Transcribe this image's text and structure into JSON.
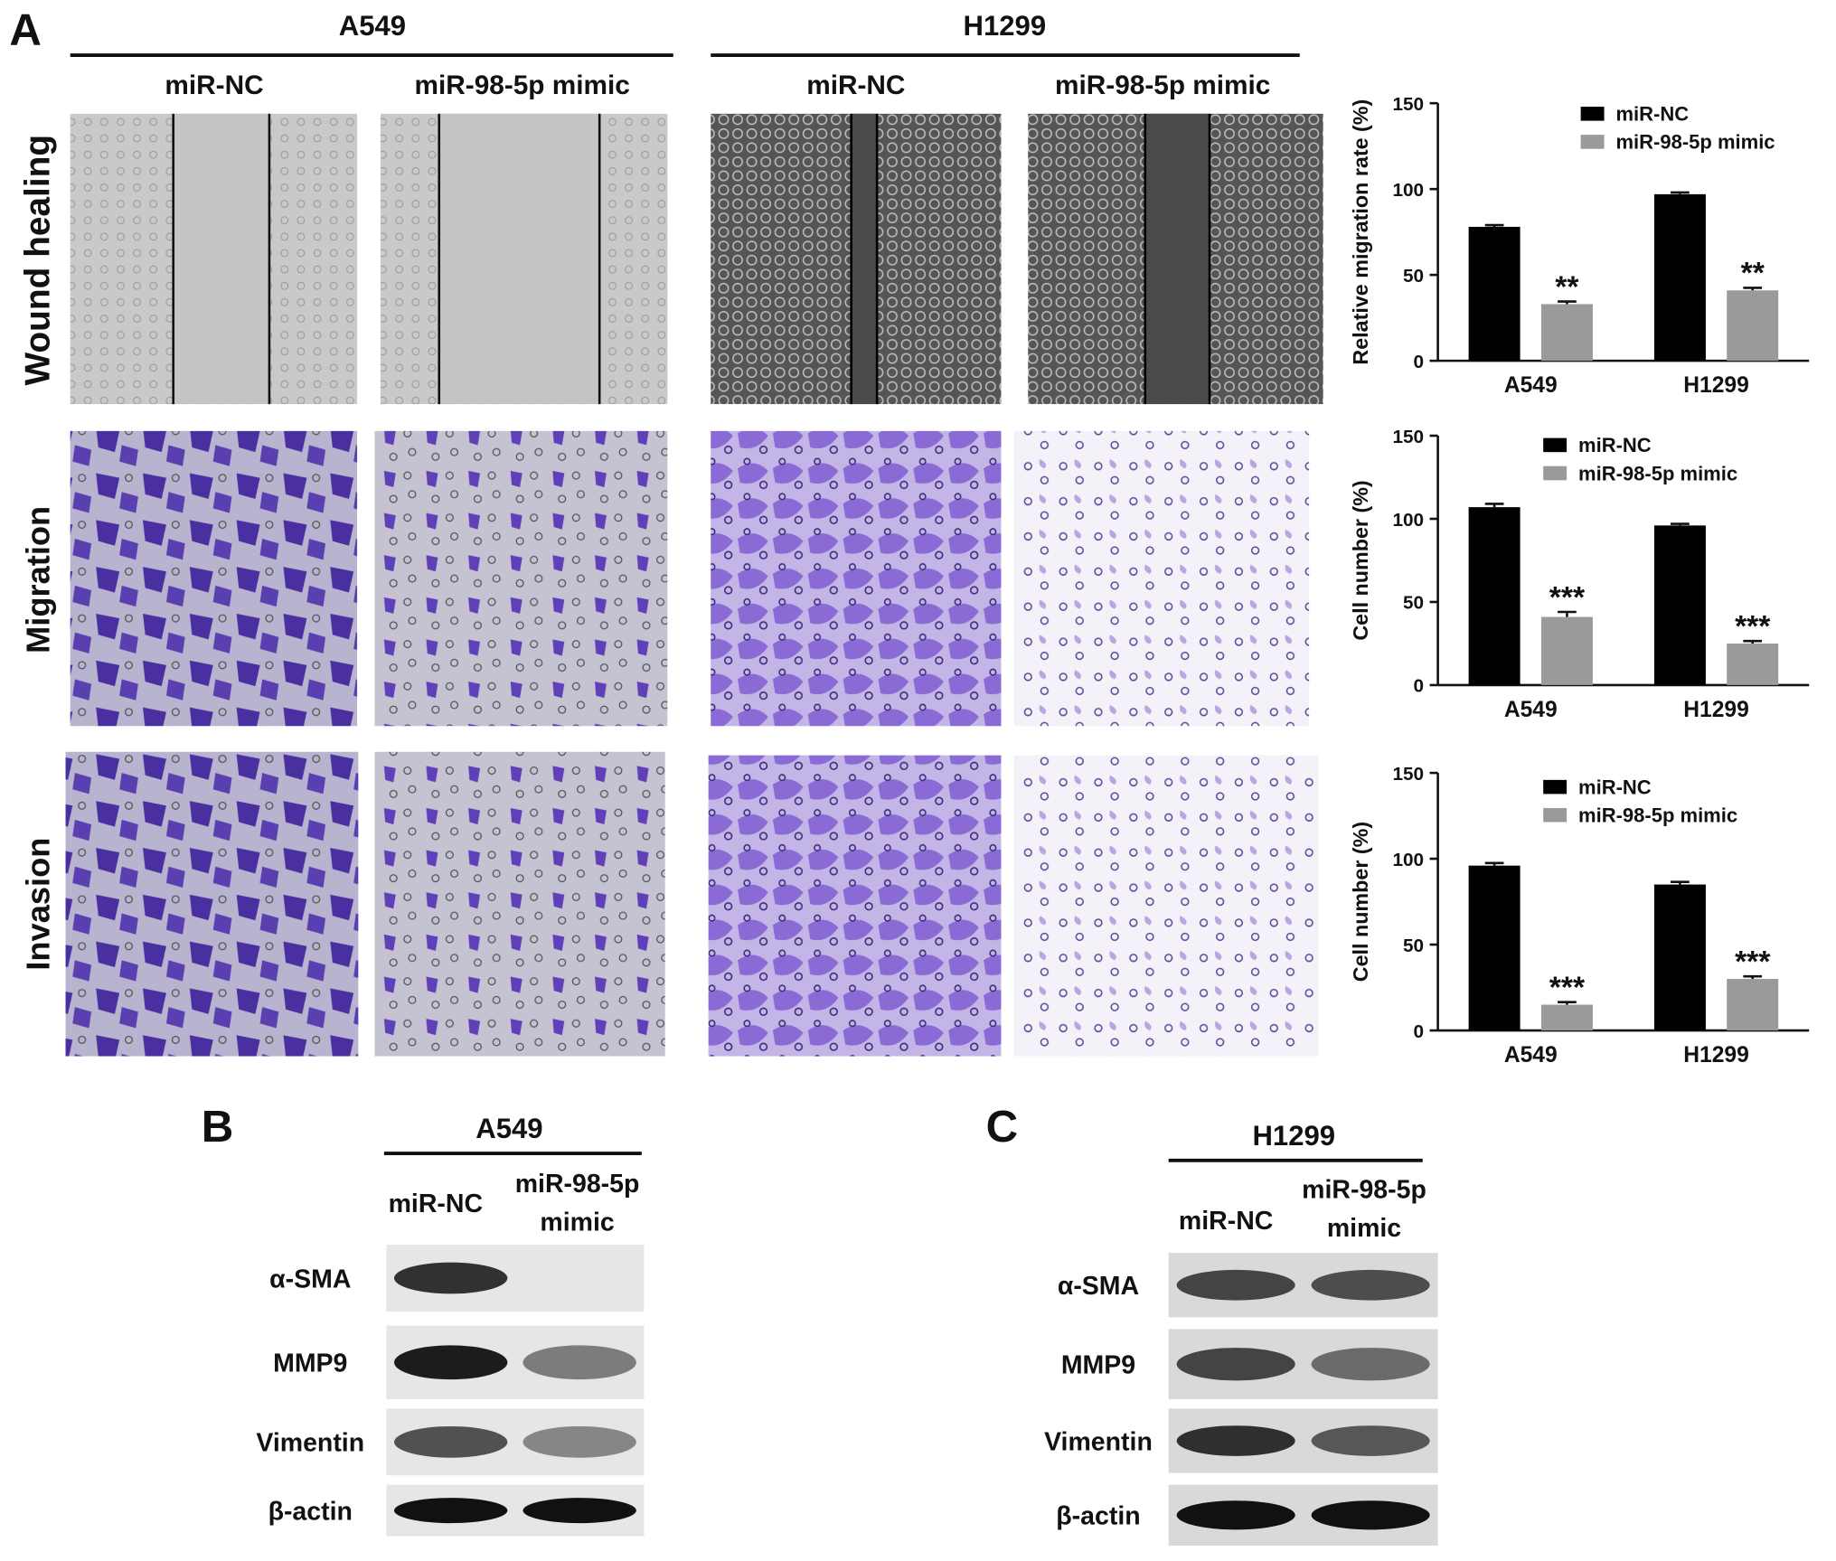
{
  "panel_a": {
    "label": "A",
    "cell_lines": [
      "A549",
      "H1299"
    ],
    "conditions": [
      "miR-NC",
      "miR-98-5p mimic"
    ],
    "assays": [
      "Wound healing",
      "Migration",
      "Invasion"
    ]
  },
  "panel_b": {
    "label": "B",
    "cell_line": "A549",
    "lanes": [
      [
        "miR-NC"
      ],
      [
        "miR-98-5p",
        "mimic"
      ]
    ],
    "proteins": [
      "α-SMA",
      "MMP9",
      "Vimentin",
      "β-actin"
    ]
  },
  "panel_c": {
    "label": "C",
    "cell_line": "H1299",
    "lanes": [
      [
        "miR-NC"
      ],
      [
        "miR-98-5p",
        "mimic"
      ]
    ],
    "proteins": [
      "α-SMA",
      "MMP9",
      "Vimentin",
      "β-actin"
    ]
  },
  "chart_data": [
    {
      "type": "bar",
      "ylabel": "Relative migration rate (%)",
      "categories": [
        "A549",
        "H1299"
      ],
      "ylim": [
        0,
        150
      ],
      "yticks": [
        0,
        50,
        100,
        150
      ],
      "legend": "upper right",
      "series": [
        {
          "name": "miR-NC",
          "color": "#000000",
          "values": [
            78,
            97
          ],
          "errors": [
            1,
            1
          ]
        },
        {
          "name": "miR-98-5p mimic",
          "color": "#9a9a9a",
          "values": [
            33,
            41
          ],
          "errors": [
            1.5,
            1.5
          ],
          "significance": [
            "**",
            "**"
          ]
        }
      ]
    },
    {
      "type": "bar",
      "ylabel": "Cell number (%)",
      "categories": [
        "A549",
        "H1299"
      ],
      "ylim": [
        0,
        150
      ],
      "yticks": [
        0,
        50,
        100,
        150
      ],
      "legend": "upper right",
      "series": [
        {
          "name": "miR-NC",
          "color": "#000000",
          "values": [
            107,
            96
          ],
          "errors": [
            2,
            1
          ]
        },
        {
          "name": "miR-98-5p mimic",
          "color": "#9a9a9a",
          "values": [
            41,
            25
          ],
          "errors": [
            3,
            1.5
          ],
          "significance": [
            "***",
            "***"
          ]
        }
      ]
    },
    {
      "type": "bar",
      "ylabel": "Cell number (%)",
      "categories": [
        "A549",
        "H1299"
      ],
      "ylim": [
        0,
        150
      ],
      "yticks": [
        0,
        50,
        100,
        150
      ],
      "legend": "upper right",
      "series": [
        {
          "name": "miR-NC",
          "color": "#000000",
          "values": [
            96,
            85
          ],
          "errors": [
            1.5,
            1.5
          ]
        },
        {
          "name": "miR-98-5p mimic",
          "color": "#9a9a9a",
          "values": [
            15,
            30
          ],
          "errors": [
            1.5,
            1.5
          ],
          "significance": [
            "***",
            "***"
          ]
        }
      ]
    }
  ]
}
